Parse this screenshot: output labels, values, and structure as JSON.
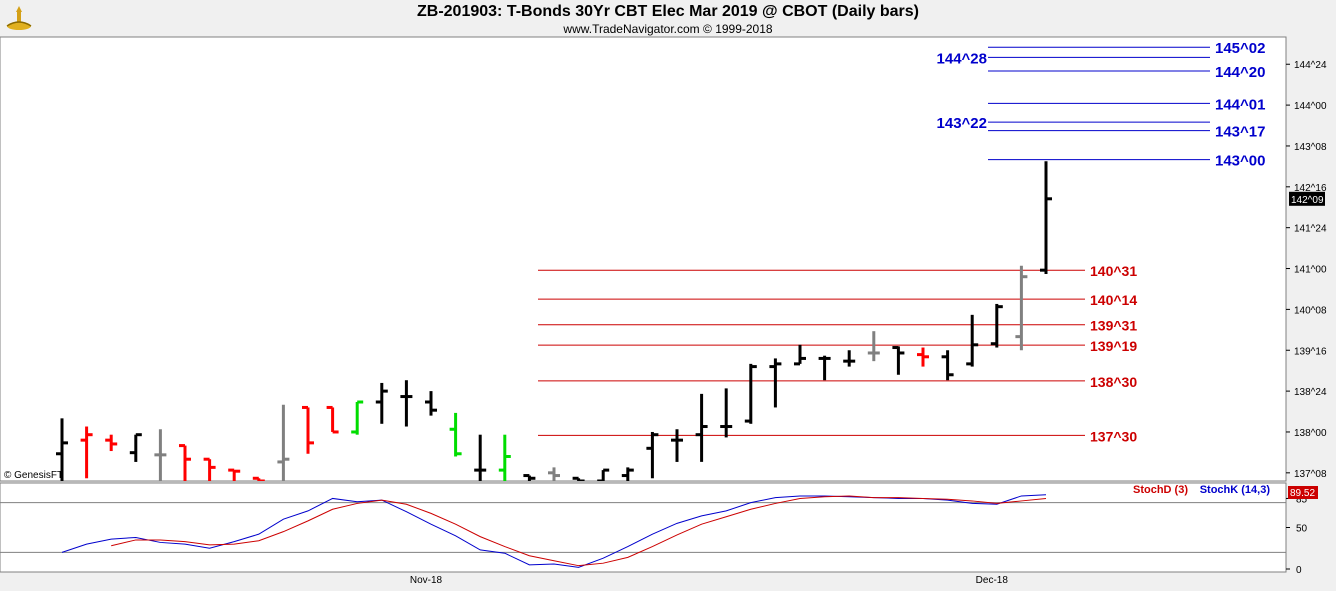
{
  "header": {
    "title": "ZB-201903:  T-Bonds 30Yr CBT Elec Mar 2019 @ CBOT  (Daily bars)",
    "subtitle": "www.TradeNavigator.com © 1999-2018"
  },
  "watermark": "© GenesisFT",
  "colors": {
    "up": "#000000",
    "down": "#ff0000",
    "neutral": "#808080",
    "reversal": "#00dd00",
    "blue_level": "#0000cc",
    "red_level": "#cc0000",
    "stochK": "#0000cc",
    "stochD": "#cc0000"
  },
  "chart_data": [
    {
      "type": "ohlc",
      "title": "ZB-201903:  T-Bonds 30Yr CBT Elec Mar 2019 @ CBOT  (Daily bars)",
      "price_unit": "32nds",
      "last_price_label": "142^09",
      "x_tick_labels": [
        {
          "label": "Nov-18",
          "bar": 15
        },
        {
          "label": "Dec-18",
          "bar": 38
        }
      ],
      "y_tick_labels": [
        "144^24",
        "144^00",
        "143^08",
        "142^16",
        "141^24",
        "141^00",
        "140^08",
        "139^16",
        "138^24",
        "138^00",
        "137^08"
      ],
      "y_ticks": [
        144.75,
        144.0,
        143.25,
        142.5,
        141.75,
        141.0,
        140.25,
        139.5,
        138.75,
        138.0,
        137.25
      ],
      "ylim": [
        137.1,
        145.25
      ],
      "bars": [
        {
          "o": 137.6,
          "h": 138.25,
          "l": 137.1,
          "c": 137.8,
          "color": "up"
        },
        {
          "o": 137.85,
          "h": 138.1,
          "l": 137.15,
          "c": 137.95,
          "color": "down"
        },
        {
          "o": 137.85,
          "h": 137.95,
          "l": 137.65,
          "c": 137.78,
          "color": "down"
        },
        {
          "o": 137.62,
          "h": 137.95,
          "l": 137.45,
          "c": 137.95,
          "color": "up"
        },
        {
          "o": 137.58,
          "h": 138.05,
          "l": 137.1,
          "c": 137.58,
          "color": "neutral"
        },
        {
          "o": 137.75,
          "h": 137.75,
          "l": 137.1,
          "c": 137.5,
          "color": "down"
        },
        {
          "o": 137.5,
          "h": 137.5,
          "l": 137.1,
          "c": 137.35,
          "color": "down"
        },
        {
          "o": 137.3,
          "h": 137.3,
          "l": 137.1,
          "c": 137.28,
          "color": "down"
        },
        {
          "o": 137.15,
          "h": 137.15,
          "l": 137.05,
          "c": 137.1,
          "color": "down"
        },
        {
          "o": 137.45,
          "h": 138.5,
          "l": 137.1,
          "c": 137.5,
          "color": "neutral"
        },
        {
          "o": 138.45,
          "h": 138.45,
          "l": 137.6,
          "c": 137.8,
          "color": "down"
        },
        {
          "o": 138.45,
          "h": 138.45,
          "l": 138.0,
          "c": 138.0,
          "color": "down"
        },
        {
          "o": 138.0,
          "h": 138.55,
          "l": 137.95,
          "c": 138.55,
          "color": "reversal"
        },
        {
          "o": 138.55,
          "h": 138.9,
          "l": 138.15,
          "c": 138.75,
          "color": "up"
        },
        {
          "o": 138.65,
          "h": 138.95,
          "l": 138.1,
          "c": 138.65,
          "color": "up"
        },
        {
          "o": 138.55,
          "h": 138.75,
          "l": 138.3,
          "c": 138.4,
          "color": "up"
        },
        {
          "o": 138.05,
          "h": 138.35,
          "l": 137.55,
          "c": 137.6,
          "color": "reversal"
        },
        {
          "o": 137.3,
          "h": 137.95,
          "l": 137.1,
          "c": 137.3,
          "color": "up"
        },
        {
          "o": 137.3,
          "h": 137.95,
          "l": 137.1,
          "c": 137.55,
          "color": "reversal"
        },
        {
          "o": 137.2,
          "h": 137.2,
          "l": 137.05,
          "c": 137.15,
          "color": "up"
        },
        {
          "o": 137.25,
          "h": 137.35,
          "l": 137.1,
          "c": 137.2,
          "color": "neutral"
        },
        {
          "o": 137.15,
          "h": 137.15,
          "l": 137.05,
          "c": 137.1,
          "color": "up"
        },
        {
          "o": 137.1,
          "h": 137.3,
          "l": 137.1,
          "c": 137.3,
          "color": "up"
        },
        {
          "o": 137.2,
          "h": 137.35,
          "l": 137.1,
          "c": 137.3,
          "color": "up"
        },
        {
          "o": 137.7,
          "h": 138.0,
          "l": 137.15,
          "c": 137.95,
          "color": "up"
        },
        {
          "o": 137.85,
          "h": 138.05,
          "l": 137.45,
          "c": 137.85,
          "color": "up"
        },
        {
          "o": 137.95,
          "h": 138.7,
          "l": 137.45,
          "c": 138.1,
          "color": "up"
        },
        {
          "o": 138.1,
          "h": 138.8,
          "l": 137.9,
          "c": 138.1,
          "color": "up"
        },
        {
          "o": 138.2,
          "h": 139.25,
          "l": 138.15,
          "c": 139.2,
          "color": "up"
        },
        {
          "o": 139.2,
          "h": 139.35,
          "l": 138.45,
          "c": 139.25,
          "color": "up"
        },
        {
          "o": 139.25,
          "h": 139.6,
          "l": 139.25,
          "c": 139.35,
          "color": "up"
        },
        {
          "o": 139.35,
          "h": 139.4,
          "l": 138.95,
          "c": 139.35,
          "color": "up"
        },
        {
          "o": 139.3,
          "h": 139.5,
          "l": 139.2,
          "c": 139.3,
          "color": "up"
        },
        {
          "o": 139.45,
          "h": 139.85,
          "l": 139.3,
          "c": 139.45,
          "color": "neutral"
        },
        {
          "o": 139.55,
          "h": 139.57,
          "l": 139.05,
          "c": 139.45,
          "color": "up"
        },
        {
          "o": 139.42,
          "h": 139.55,
          "l": 139.2,
          "c": 139.38,
          "color": "down"
        },
        {
          "o": 139.38,
          "h": 139.5,
          "l": 138.95,
          "c": 139.05,
          "color": "up"
        },
        {
          "o": 139.25,
          "h": 140.15,
          "l": 139.2,
          "c": 139.6,
          "color": "up"
        },
        {
          "o": 139.62,
          "h": 140.35,
          "l": 139.55,
          "c": 140.3,
          "color": "up"
        },
        {
          "o": 139.75,
          "h": 141.05,
          "l": 139.5,
          "c": 140.85,
          "color": "neutral"
        },
        {
          "o": 140.97,
          "h": 142.97,
          "l": 140.9,
          "c": 142.28,
          "color": "up"
        }
      ],
      "levels": [
        {
          "label": "145^02",
          "price": 145.0625,
          "color": "blue_level",
          "side": "right"
        },
        {
          "label": "144^28",
          "price": 144.875,
          "color": "blue_level",
          "side": "left"
        },
        {
          "label": "144^20",
          "price": 144.625,
          "color": "blue_level",
          "side": "right"
        },
        {
          "label": "144^01",
          "price": 144.03125,
          "color": "blue_level",
          "side": "right"
        },
        {
          "label": "143^22",
          "price": 143.6875,
          "color": "blue_level",
          "side": "left"
        },
        {
          "label": "143^17",
          "price": 143.53125,
          "color": "blue_level",
          "side": "right"
        },
        {
          "label": "143^00",
          "price": 143.0,
          "color": "blue_level",
          "side": "right"
        },
        {
          "label": "140^31",
          "price": 140.96875,
          "color": "red_level",
          "side": "right"
        },
        {
          "label": "140^14",
          "price": 140.4375,
          "color": "red_level",
          "side": "right"
        },
        {
          "label": "139^31",
          "price": 139.96875,
          "color": "red_level",
          "side": "right"
        },
        {
          "label": "139^19",
          "price": 139.59375,
          "color": "red_level",
          "side": "right"
        },
        {
          "label": "138^30",
          "price": 138.9375,
          "color": "red_level",
          "side": "right"
        },
        {
          "label": "137^30",
          "price": 137.9375,
          "color": "red_level",
          "side": "right"
        }
      ]
    },
    {
      "type": "line",
      "title": "",
      "ylim": [
        0,
        100
      ],
      "y_tick_labels": [
        "0",
        "50",
        "85"
      ],
      "y_ticks": [
        0,
        50,
        85
      ],
      "guide_lines": [
        20,
        80
      ],
      "value_label": "89.52",
      "series": [
        {
          "name": "StochK (14,3)",
          "color": "stochK",
          "values": [
            20,
            30,
            36,
            38,
            32,
            30,
            25,
            33,
            42,
            60,
            70,
            85,
            81,
            83,
            69,
            54,
            40,
            23,
            19,
            5,
            6,
            2,
            13,
            27,
            42,
            55,
            64,
            70,
            80,
            86,
            88,
            88,
            87,
            86,
            85,
            85,
            83,
            79,
            78,
            88,
            89.5
          ]
        },
        {
          "name": "StochD (3)",
          "color": "stochD",
          "values": [
            null,
            null,
            28,
            35,
            35,
            33,
            29,
            30,
            34,
            45,
            58,
            72,
            79,
            83,
            78,
            67,
            54,
            39,
            27,
            16,
            10,
            4,
            7,
            14,
            27,
            41,
            54,
            63,
            72,
            79,
            85,
            87,
            88,
            86,
            86,
            85,
            84,
            82,
            79,
            82,
            85
          ]
        }
      ]
    }
  ]
}
